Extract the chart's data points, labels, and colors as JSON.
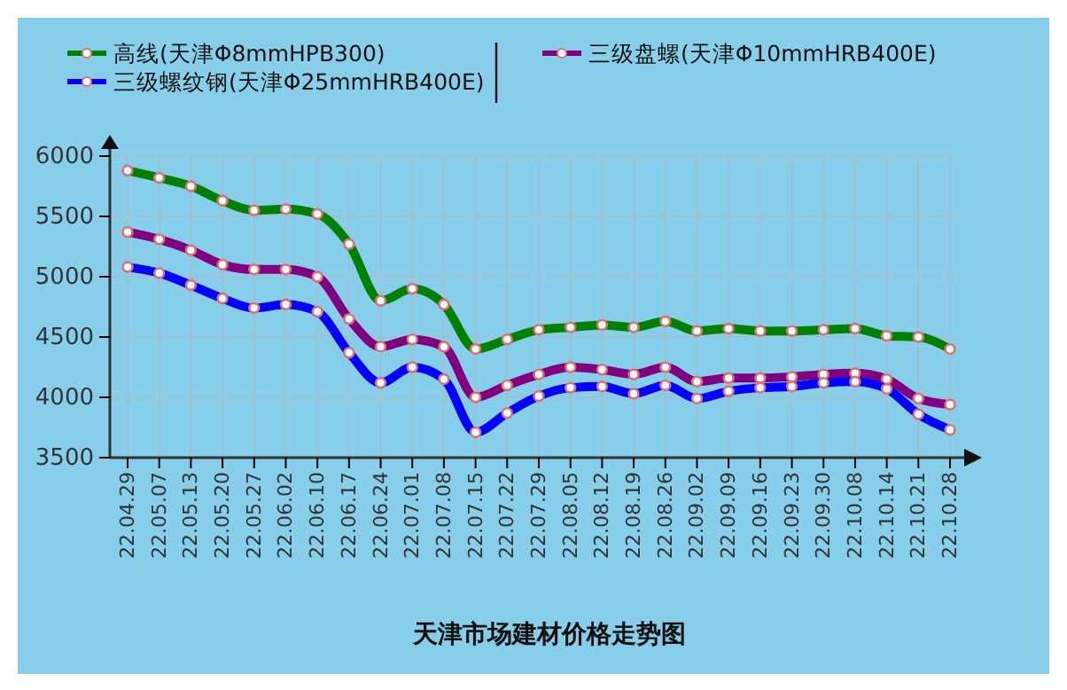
{
  "chart_data": {
    "type": "line",
    "title": "天津市场建材价格走势图",
    "categories": [
      "22.04.29",
      "22.05.07",
      "22.05.13",
      "22.05.20",
      "22.05.27",
      "22.06.02",
      "22.06.10",
      "22.06.17",
      "22.06.24",
      "22.07.01",
      "22.07.08",
      "22.07.15",
      "22.07.22",
      "22.07.29",
      "22.08.05",
      "22.08.12",
      "22.08.19",
      "22.08.26",
      "22.09.02",
      "22.09.09",
      "22.09.16",
      "22.09.23",
      "22.09.30",
      "22.10.08",
      "22.10.14",
      "22.10.21",
      "22.10.28"
    ],
    "series": [
      {
        "name": "高线(天津Φ8mmHPB300)",
        "color": "#008000",
        "values": [
          5880,
          5820,
          5750,
          5630,
          5550,
          5560,
          5520,
          5270,
          4800,
          4900,
          4770,
          4400,
          4480,
          4560,
          4580,
          4600,
          4580,
          4630,
          4550,
          4570,
          4550,
          4550,
          4560,
          4570,
          4510,
          4500,
          4400
        ]
      },
      {
        "name": "三级盘螺(天津Φ10mmHRB400E)",
        "color": "#800080",
        "values": [
          5370,
          5310,
          5220,
          5100,
          5060,
          5060,
          5000,
          4650,
          4420,
          4480,
          4420,
          4000,
          4100,
          4190,
          4250,
          4230,
          4190,
          4250,
          4130,
          4160,
          4160,
          4170,
          4190,
          4200,
          4150,
          3990,
          3940
        ]
      },
      {
        "name": "三级螺纹钢(天津Φ25mmHRB400E)",
        "color": "#0000ff",
        "values": [
          5080,
          5030,
          4930,
          4820,
          4740,
          4770,
          4710,
          4370,
          4120,
          4250,
          4150,
          3710,
          3870,
          4010,
          4080,
          4090,
          4030,
          4100,
          3990,
          4050,
          4080,
          4090,
          4120,
          4130,
          4070,
          3860,
          3730
        ]
      }
    ],
    "ylim": [
      3500,
      6000
    ],
    "yticks": [
      3500,
      4000,
      4500,
      5000,
      5500,
      6000
    ],
    "grid": true,
    "legend": "top",
    "marker": "circle",
    "line_style": "solid"
  }
}
